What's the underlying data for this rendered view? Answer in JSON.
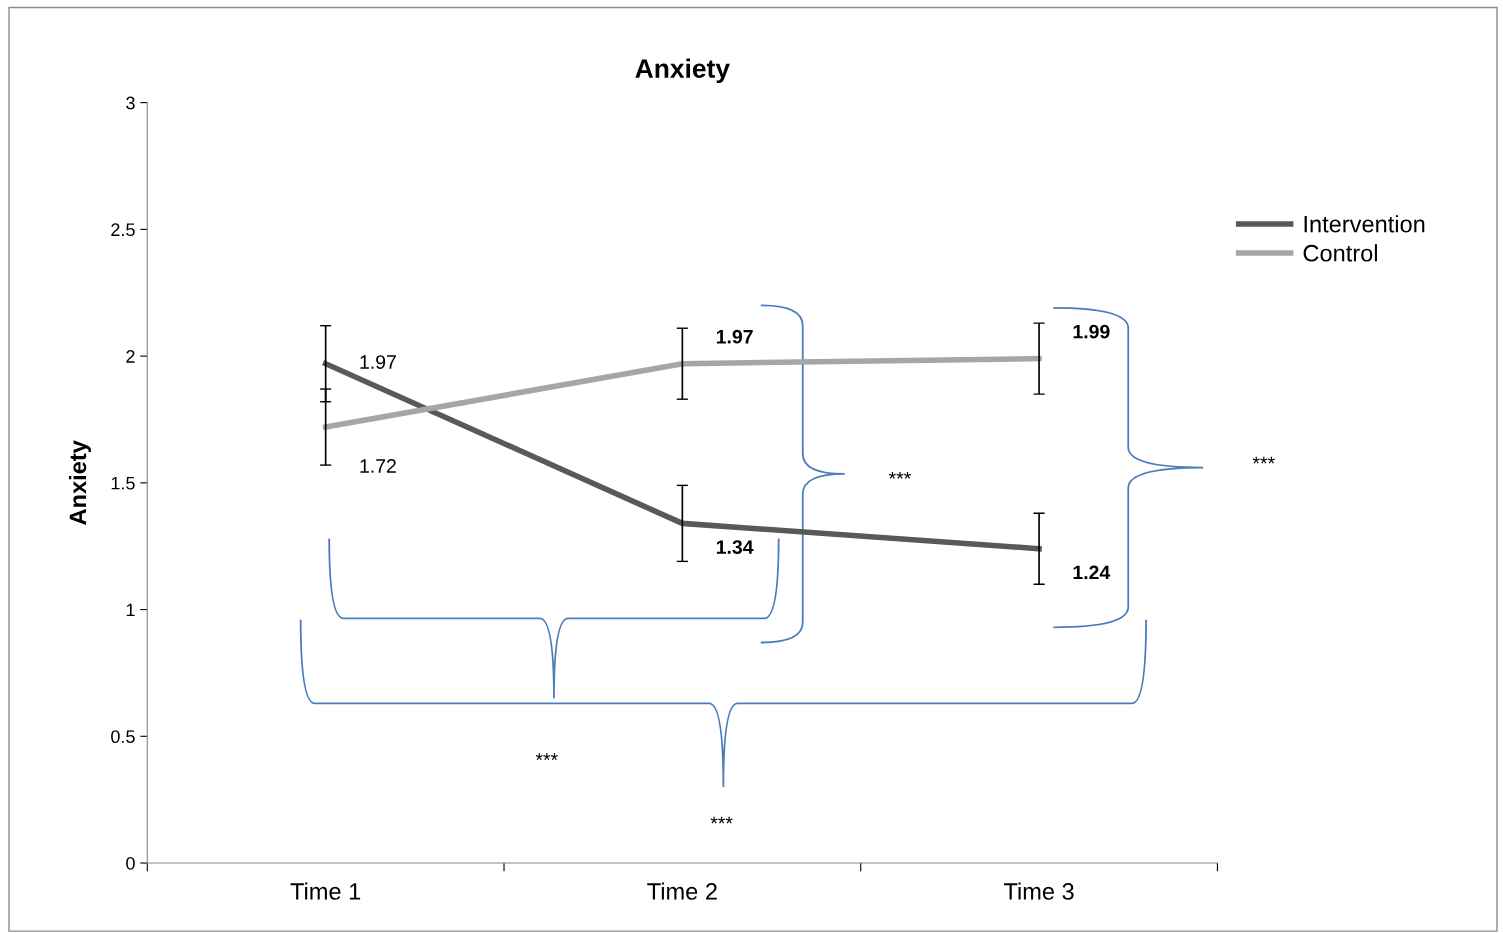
{
  "chart_data": {
    "type": "line",
    "title": "Anxiety",
    "ylabel": "Anxiety",
    "categories": [
      "Time 1",
      "Time 2",
      "Time 3"
    ],
    "series": [
      {
        "name": "Intervention",
        "color": "#595959",
        "values": [
          1.97,
          1.34,
          1.24
        ],
        "errors": [
          0.15,
          0.15,
          0.14
        ],
        "value_labels": [
          "1.97",
          "1.34",
          "1.24"
        ]
      },
      {
        "name": "Control",
        "color": "#a6a6a6",
        "values": [
          1.72,
          1.97,
          1.99
        ],
        "errors": [
          0.15,
          0.14,
          0.14
        ],
        "value_labels": [
          "1.72",
          "1.97",
          "1.99"
        ]
      }
    ],
    "ylim": [
      0,
      3
    ],
    "yticks": [
      0,
      0.5,
      1,
      1.5,
      2,
      2.5,
      3
    ],
    "grid": false,
    "legend": "right",
    "marker": "none",
    "line_style": "solid",
    "annotations": [
      "***",
      "***",
      "***",
      "***"
    ]
  }
}
